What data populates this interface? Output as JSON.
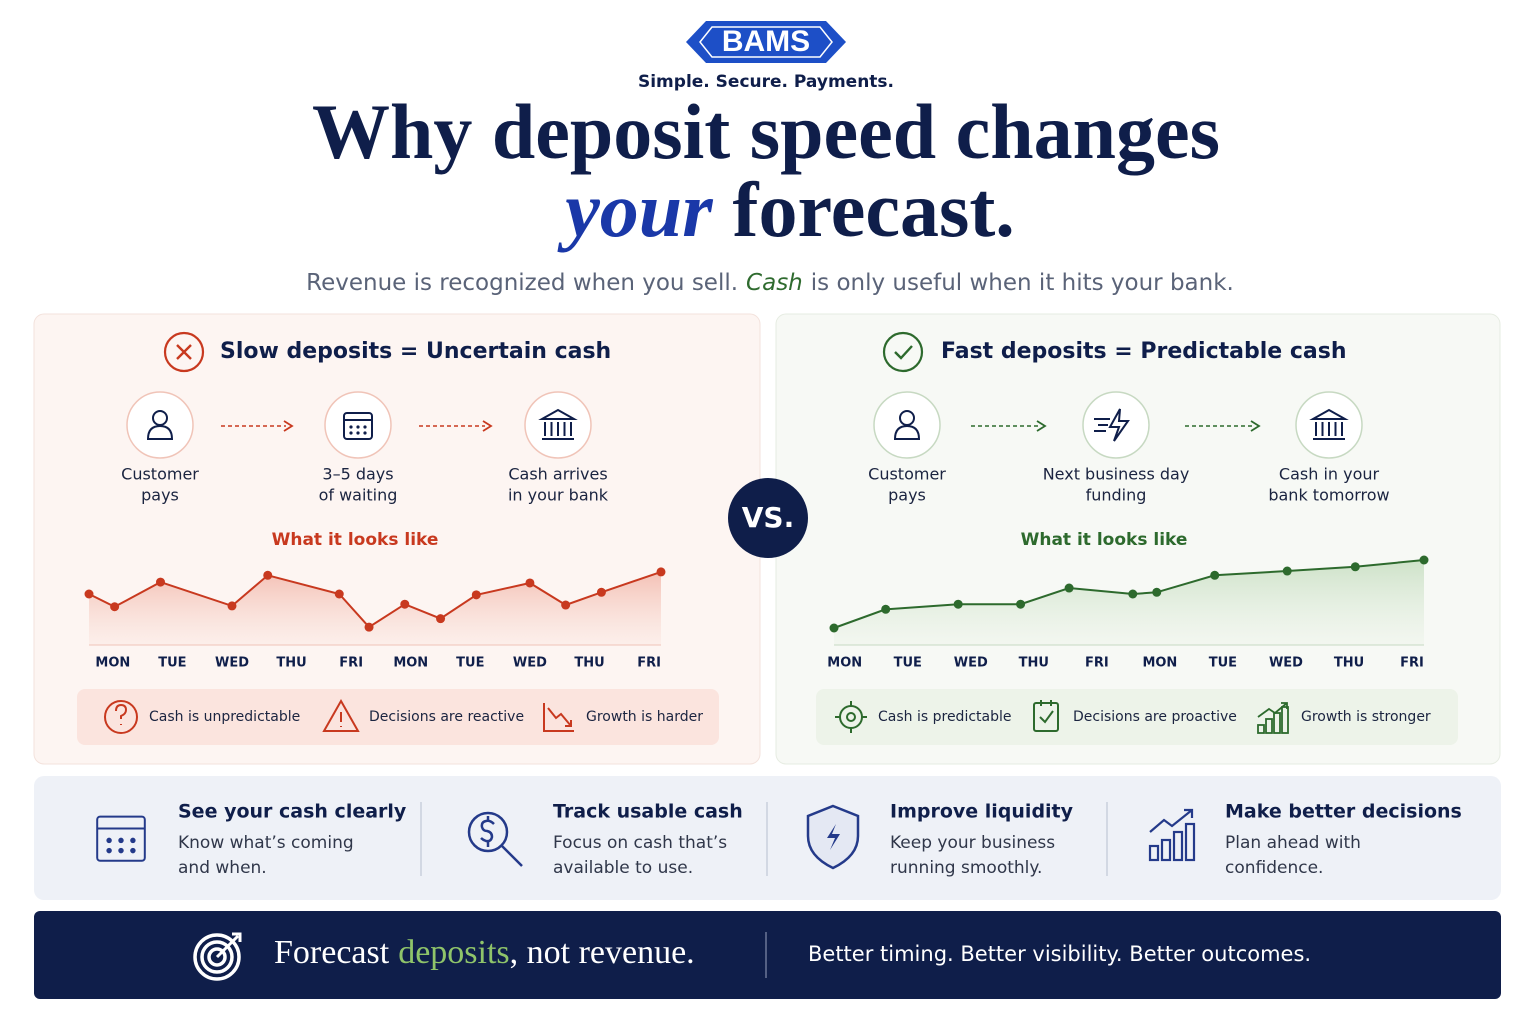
{
  "header": {
    "logo": "BAMS",
    "tagline": "Simple. Secure. Payments.",
    "title_line1": "Why deposit speed changes",
    "title_em": "your",
    "title_rest": "forecast.",
    "subtitle_a": "Revenue is recognized when you sell.",
    "subtitle_cash": "Cash",
    "subtitle_b": "is only useful when it hits your bank."
  },
  "vs": "VS.",
  "panels": [
    {
      "heading": "Slow deposits = Uncertain cash",
      "steps": [
        [
          "Customer",
          "pays"
        ],
        [
          "3–5 days",
          "of waiting"
        ],
        [
          "Cash arrives",
          "in your bank"
        ]
      ],
      "badges": [
        "Cash is unpredictable",
        "Decisions are reactive",
        "Growth is harder"
      ]
    },
    {
      "heading": "Fast deposits = Predictable cash",
      "steps": [
        [
          "Customer",
          "pays"
        ],
        [
          "Next business day",
          "funding"
        ],
        [
          "Cash in your",
          "bank tomorrow"
        ]
      ],
      "badges": [
        "Cash is predictable",
        "Decisions are proactive",
        "Growth is stronger"
      ]
    }
  ],
  "chart_data": [
    {
      "type": "line",
      "title": "What it looks like",
      "color": "#c8391f",
      "area": true,
      "x": [
        -0.4,
        0.03,
        0.8,
        2.0,
        2.6,
        3.8,
        4.3,
        4.9,
        5.5,
        6.1,
        7.0,
        7.6,
        8.2,
        9.2
      ],
      "values": [
        60,
        45,
        74,
        46,
        82,
        60,
        21,
        48,
        31,
        59,
        73,
        47,
        62,
        86
      ],
      "xlim": [
        -0.4,
        9.2
      ],
      "ylim": [
        0,
        100
      ],
      "xticks": [
        {
          "value": 0,
          "label": "MON"
        },
        {
          "value": 1,
          "label": "TUE"
        },
        {
          "value": 2,
          "label": "WED"
        },
        {
          "value": 3,
          "label": "THU"
        },
        {
          "value": 4,
          "label": "FRI"
        },
        {
          "value": 5,
          "label": "MON"
        },
        {
          "value": 6,
          "label": "TUE"
        },
        {
          "value": 7,
          "label": "WED"
        },
        {
          "value": 8,
          "label": "THU"
        },
        {
          "value": 9,
          "label": "FRI"
        }
      ]
    },
    {
      "type": "line",
      "title": "What it looks like",
      "color": "#2d6a2d",
      "area": true,
      "x": [
        -0.17,
        0.65,
        1.8,
        2.79,
        3.56,
        4.57,
        4.95,
        5.87,
        7.02,
        8.1,
        9.19
      ],
      "values": [
        20,
        42,
        48,
        48,
        67,
        60,
        62,
        82,
        87,
        92,
        100
      ],
      "xlim": [
        -0.17,
        9.19
      ],
      "ylim": [
        0,
        100
      ],
      "xticks": [
        {
          "value": 0,
          "label": "MON"
        },
        {
          "value": 1,
          "label": "TUE"
        },
        {
          "value": 2,
          "label": "WED"
        },
        {
          "value": 3,
          "label": "THU"
        },
        {
          "value": 4,
          "label": "FRI"
        },
        {
          "value": 5,
          "label": "MON"
        },
        {
          "value": 6,
          "label": "TUE"
        },
        {
          "value": 7,
          "label": "WED"
        },
        {
          "value": 8,
          "label": "THU"
        },
        {
          "value": 9,
          "label": "FRI"
        }
      ]
    }
  ],
  "benefits": [
    {
      "title": "See your cash clearly",
      "lines": [
        "Know what’s coming",
        "and when."
      ]
    },
    {
      "title": "Track usable cash",
      "lines": [
        "Focus on cash that’s",
        "available to use."
      ]
    },
    {
      "title": "Improve liquidity",
      "lines": [
        "Keep your business",
        "running smoothly."
      ]
    },
    {
      "title": "Make better decisions",
      "lines": [
        "Plan ahead with",
        "confidence."
      ]
    }
  ],
  "footer": {
    "lead": "Forecast",
    "accent": "deposits",
    "rest": ", not revenue.",
    "tagline": "Better timing. Better visibility. Better outcomes."
  }
}
